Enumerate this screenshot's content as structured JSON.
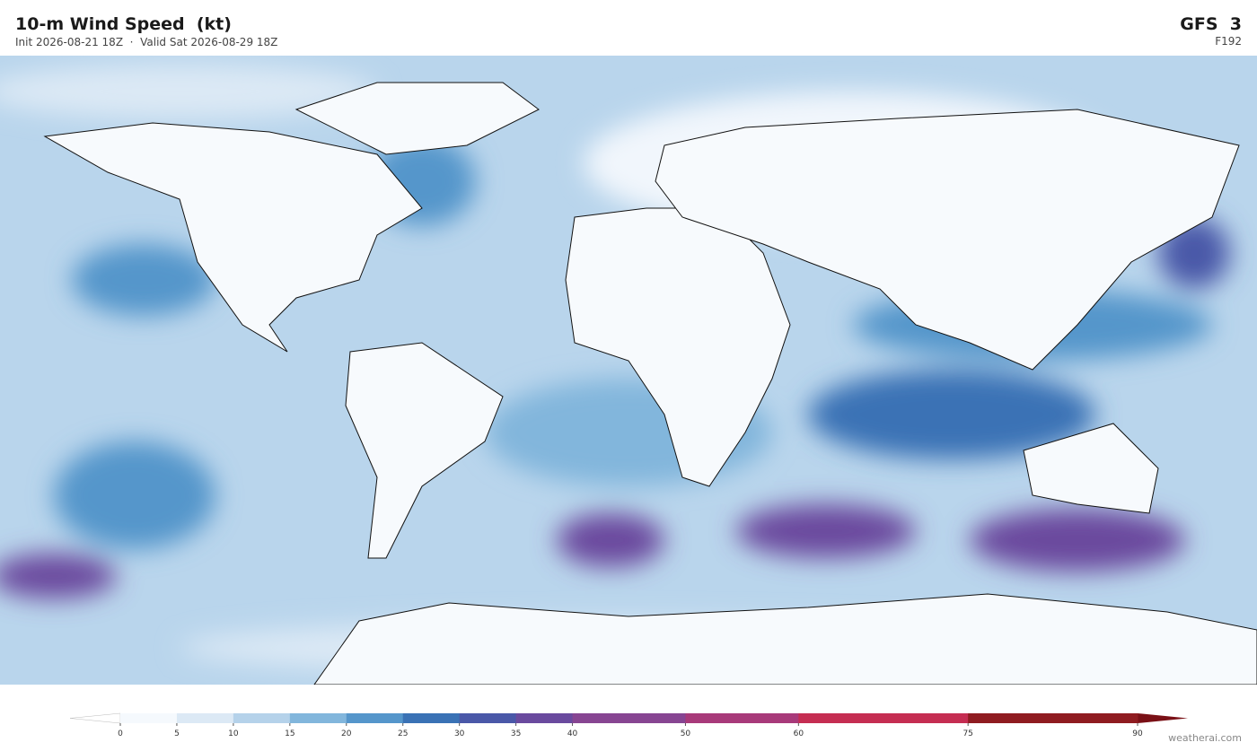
{
  "header": {
    "title": "10-m Wind Speed  (kt)",
    "subtitle": "Init 2026-08-21 18Z  ·  Valid Sat 2026-08-29 18Z",
    "model": "GFS  3",
    "forecast": "F192"
  },
  "colorbar": {
    "boundaries": [
      0,
      5,
      10,
      15,
      20,
      25,
      30,
      35,
      40,
      50,
      60,
      75,
      90
    ],
    "colors": [
      "#f5f9fd",
      "#dce9f5",
      "#b5d2ea",
      "#82b6dc",
      "#5596cb",
      "#3a72b5",
      "#4a58a8",
      "#6a4a9e",
      "#874592",
      "#a83a7a",
      "#c52d52",
      "#8f1c21"
    ],
    "under_color": "#ffffff",
    "over_color": "#7a1016"
  },
  "footer": {
    "credit": "weatherai.com"
  }
}
